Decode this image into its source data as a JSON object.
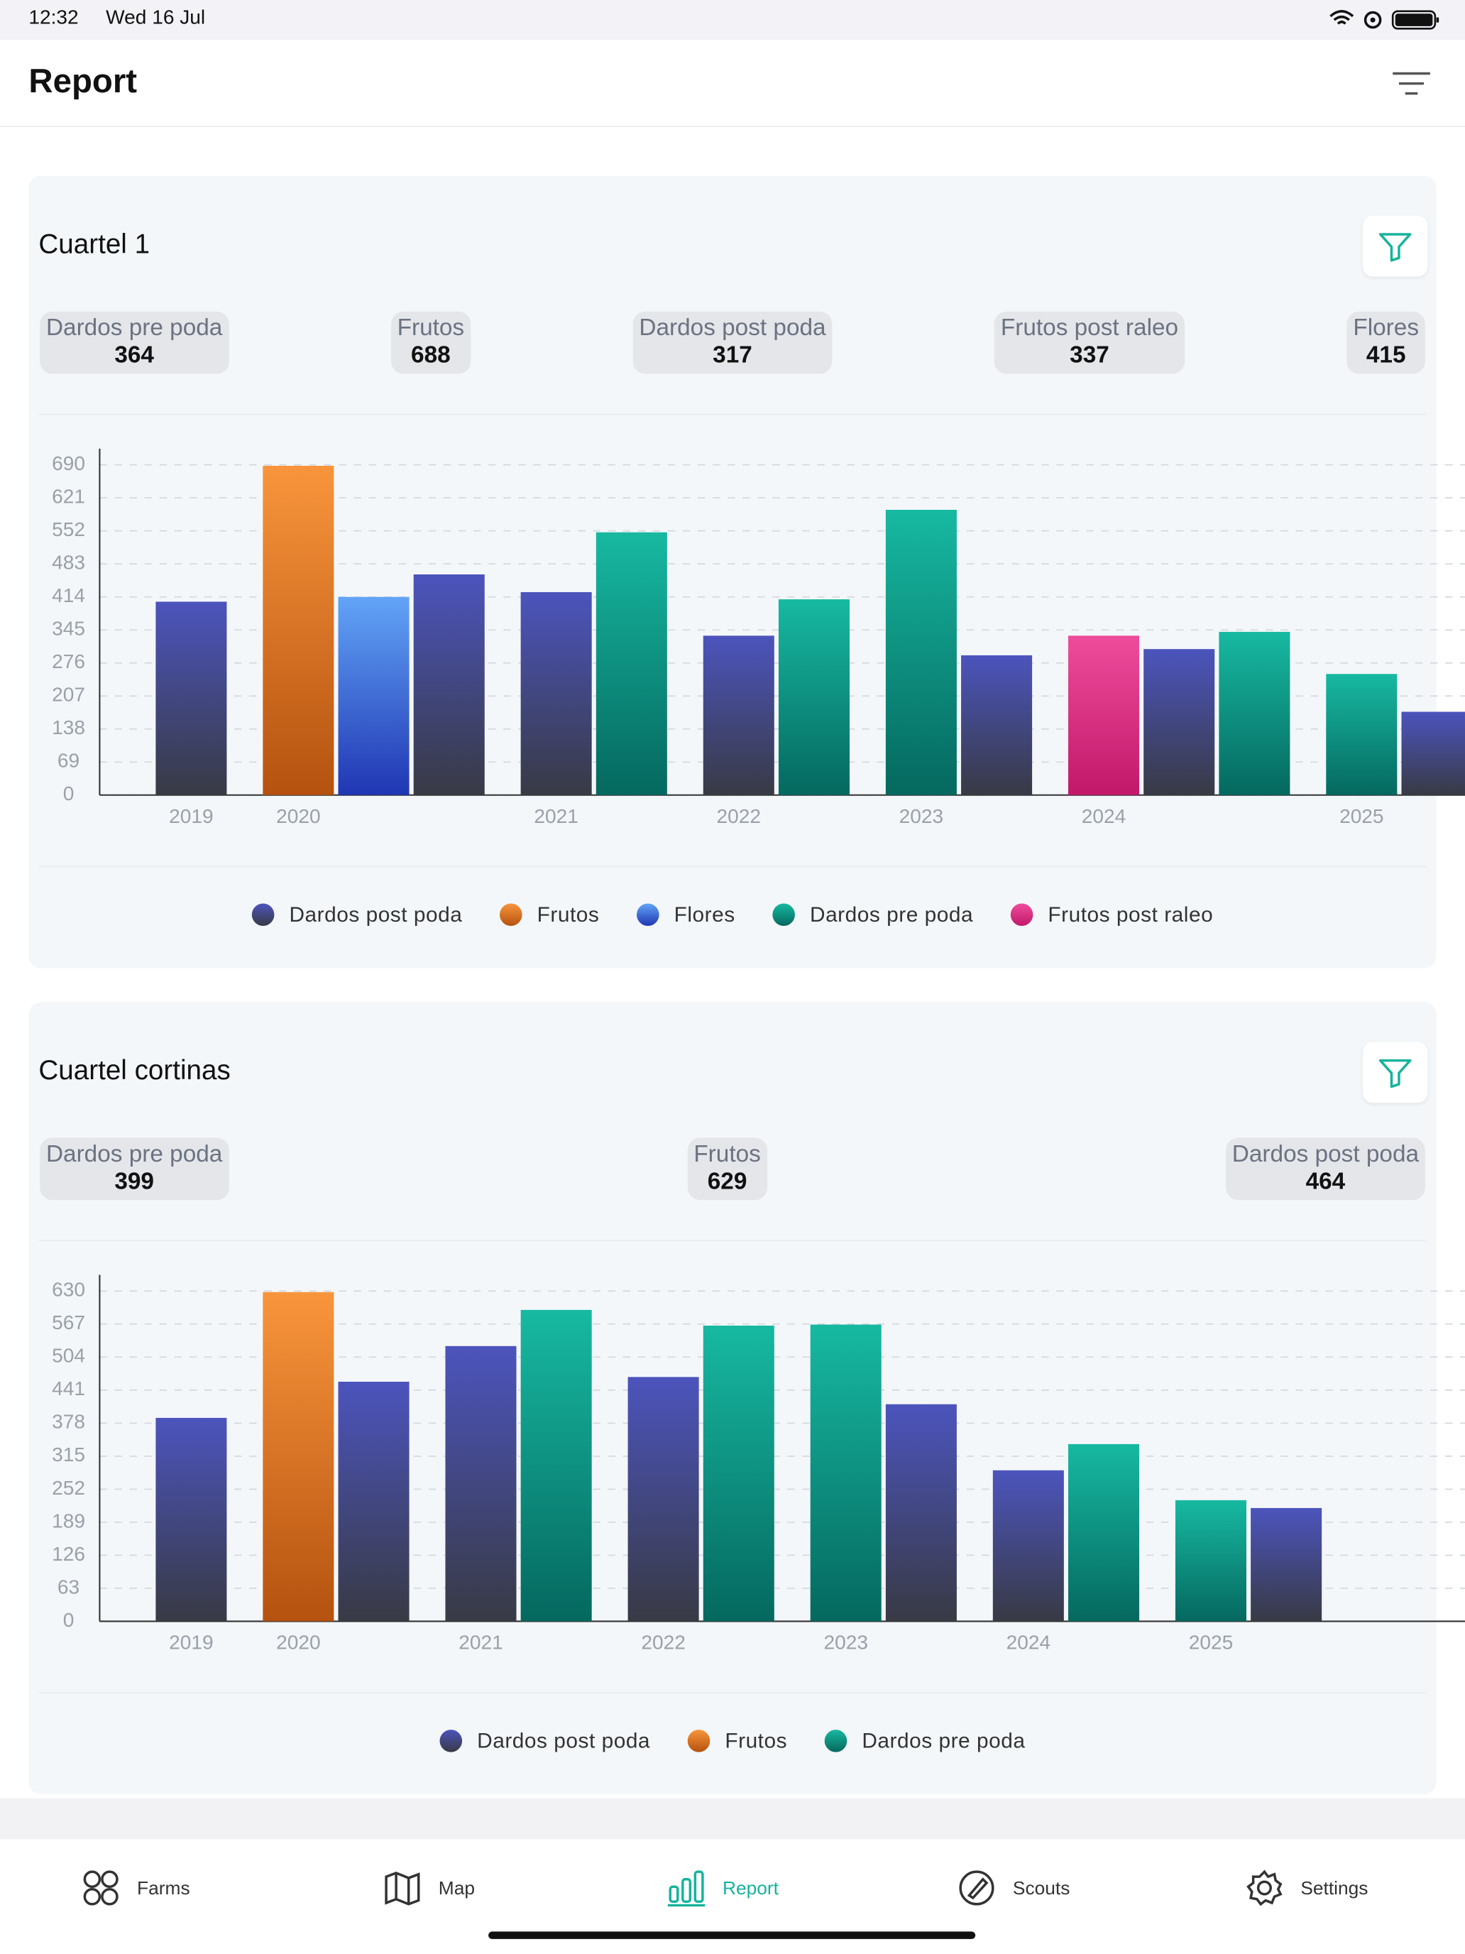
{
  "status_bar": {
    "time": "12:32",
    "date": "Wed 16 Jul"
  },
  "header": {
    "title": "Report"
  },
  "cards": [
    {
      "title": "Cuartel 1",
      "stats": [
        {
          "label": "Dardos pre poda",
          "value": 364
        },
        {
          "label": "Frutos",
          "value": 688
        },
        {
          "label": "Dardos post poda",
          "value": 317
        },
        {
          "label": "Frutos post raleo",
          "value": 337
        },
        {
          "label": "Flores",
          "value": 415
        }
      ]
    },
    {
      "title": "Cuartel cortinas",
      "stats": [
        {
          "label": "Dardos pre poda",
          "value": 399
        },
        {
          "label": "Frutos",
          "value": 629
        },
        {
          "label": "Dardos post poda",
          "value": 464
        }
      ]
    }
  ],
  "chart_data": [
    {
      "type": "bar",
      "ylim": [
        0,
        690
      ],
      "yticks": [
        0,
        69,
        138,
        207,
        276,
        345,
        414,
        483,
        552,
        621,
        690
      ],
      "grid": true,
      "series": [
        {
          "name": "Dardos post poda",
          "gradient": [
            "#4c54bd",
            "#383a44"
          ]
        },
        {
          "name": "Frutos",
          "gradient": [
            "#f8953c",
            "#b5520f"
          ]
        },
        {
          "name": "Flores",
          "gradient": [
            "#62a4f7",
            "#2036b3"
          ]
        },
        {
          "name": "Dardos pre poda",
          "gradient": [
            "#17b9a1",
            "#05685f"
          ]
        },
        {
          "name": "Frutos post raleo",
          "gradient": [
            "#ef4c9c",
            "#c2186a"
          ]
        }
      ],
      "categories": [
        "2019",
        "2020",
        "2021",
        "2022",
        "2023",
        "2024",
        "2025"
      ],
      "groups": [
        [
          {
            "series": 0,
            "value": 404
          }
        ],
        [
          {
            "series": 1,
            "value": 688
          },
          {
            "series": 2,
            "value": 414
          },
          {
            "series": 0,
            "value": 461
          }
        ],
        [
          {
            "series": 0,
            "value": 424
          },
          {
            "series": 3,
            "value": 549
          }
        ],
        [
          {
            "series": 0,
            "value": 333
          },
          {
            "series": 3,
            "value": 409
          }
        ],
        [
          {
            "series": 3,
            "value": 596
          },
          {
            "series": 0,
            "value": 292
          }
        ],
        [
          {
            "series": 4,
            "value": 333
          },
          {
            "series": 0,
            "value": 305
          },
          {
            "series": 3,
            "value": 341
          }
        ],
        [
          {
            "series": 3,
            "value": 253
          },
          {
            "series": 0,
            "value": 174
          }
        ]
      ]
    },
    {
      "type": "bar",
      "ylim": [
        0,
        630
      ],
      "yticks": [
        0,
        63,
        126,
        189,
        252,
        315,
        378,
        441,
        504,
        567,
        630
      ],
      "grid": true,
      "series": [
        {
          "name": "Dardos post poda",
          "gradient": [
            "#4c54bd",
            "#383a44"
          ]
        },
        {
          "name": "Frutos",
          "gradient": [
            "#f8953c",
            "#b5520f"
          ]
        },
        {
          "name": "Dardos pre poda",
          "gradient": [
            "#17b9a1",
            "#05685f"
          ]
        }
      ],
      "categories": [
        "2019",
        "2020",
        "2021",
        "2022",
        "2023",
        "2024",
        "2025"
      ],
      "groups": [
        [
          {
            "series": 0,
            "value": 388
          }
        ],
        [
          {
            "series": 1,
            "value": 628
          },
          {
            "series": 0,
            "value": 457
          }
        ],
        [
          {
            "series": 0,
            "value": 525
          },
          {
            "series": 2,
            "value": 594
          }
        ],
        [
          {
            "series": 0,
            "value": 466
          },
          {
            "series": 2,
            "value": 564
          }
        ],
        [
          {
            "series": 2,
            "value": 566
          },
          {
            "series": 0,
            "value": 414
          }
        ],
        [
          {
            "series": 0,
            "value": 288
          },
          {
            "series": 2,
            "value": 338
          }
        ],
        [
          {
            "series": 2,
            "value": 231
          },
          {
            "series": 0,
            "value": 216
          }
        ]
      ]
    }
  ],
  "tab_bar": {
    "items": [
      "Farms",
      "Map",
      "Report",
      "Scouts",
      "Settings"
    ]
  }
}
